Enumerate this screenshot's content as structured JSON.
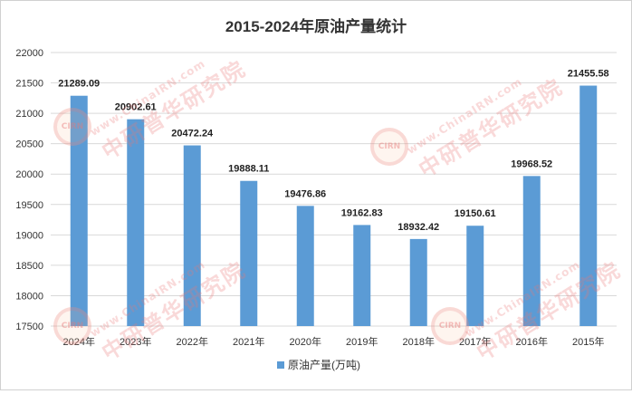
{
  "chart_data": {
    "type": "bar",
    "title": "2015-2024年原油产量统计",
    "categories": [
      "2024年",
      "2023年",
      "2022年",
      "2021年",
      "2020年",
      "2019年",
      "2018年",
      "2017年",
      "2016年",
      "2015年"
    ],
    "series": [
      {
        "name": "原油产量(万吨)",
        "values": [
          21289.09,
          20902.61,
          20472.24,
          19888.11,
          19476.86,
          19162.83,
          18932.42,
          19150.61,
          19968.52,
          21455.58
        ],
        "color": "#5b9bd5"
      }
    ],
    "data_labels": [
      "21289.09",
      "20902.61",
      "20472.24",
      "19888.11",
      "19476.86",
      "19162.83",
      "18932.42",
      "19150.61",
      "19968.52",
      "21455.58"
    ],
    "yticks": [
      17500,
      18000,
      18500,
      19000,
      19500,
      20000,
      20500,
      21000,
      21500,
      22000
    ],
    "ytick_labels": [
      "17500",
      "18000",
      "18500",
      "19000",
      "19500",
      "20000",
      "20500",
      "21000",
      "21500",
      "22000"
    ],
    "ylim": [
      17500,
      22000
    ],
    "grid": true,
    "legend_position": "bottom"
  },
  "watermark": {
    "url": "www.ChinaIRN.com",
    "name": "中研普华研究院",
    "logo": "CIRN"
  }
}
